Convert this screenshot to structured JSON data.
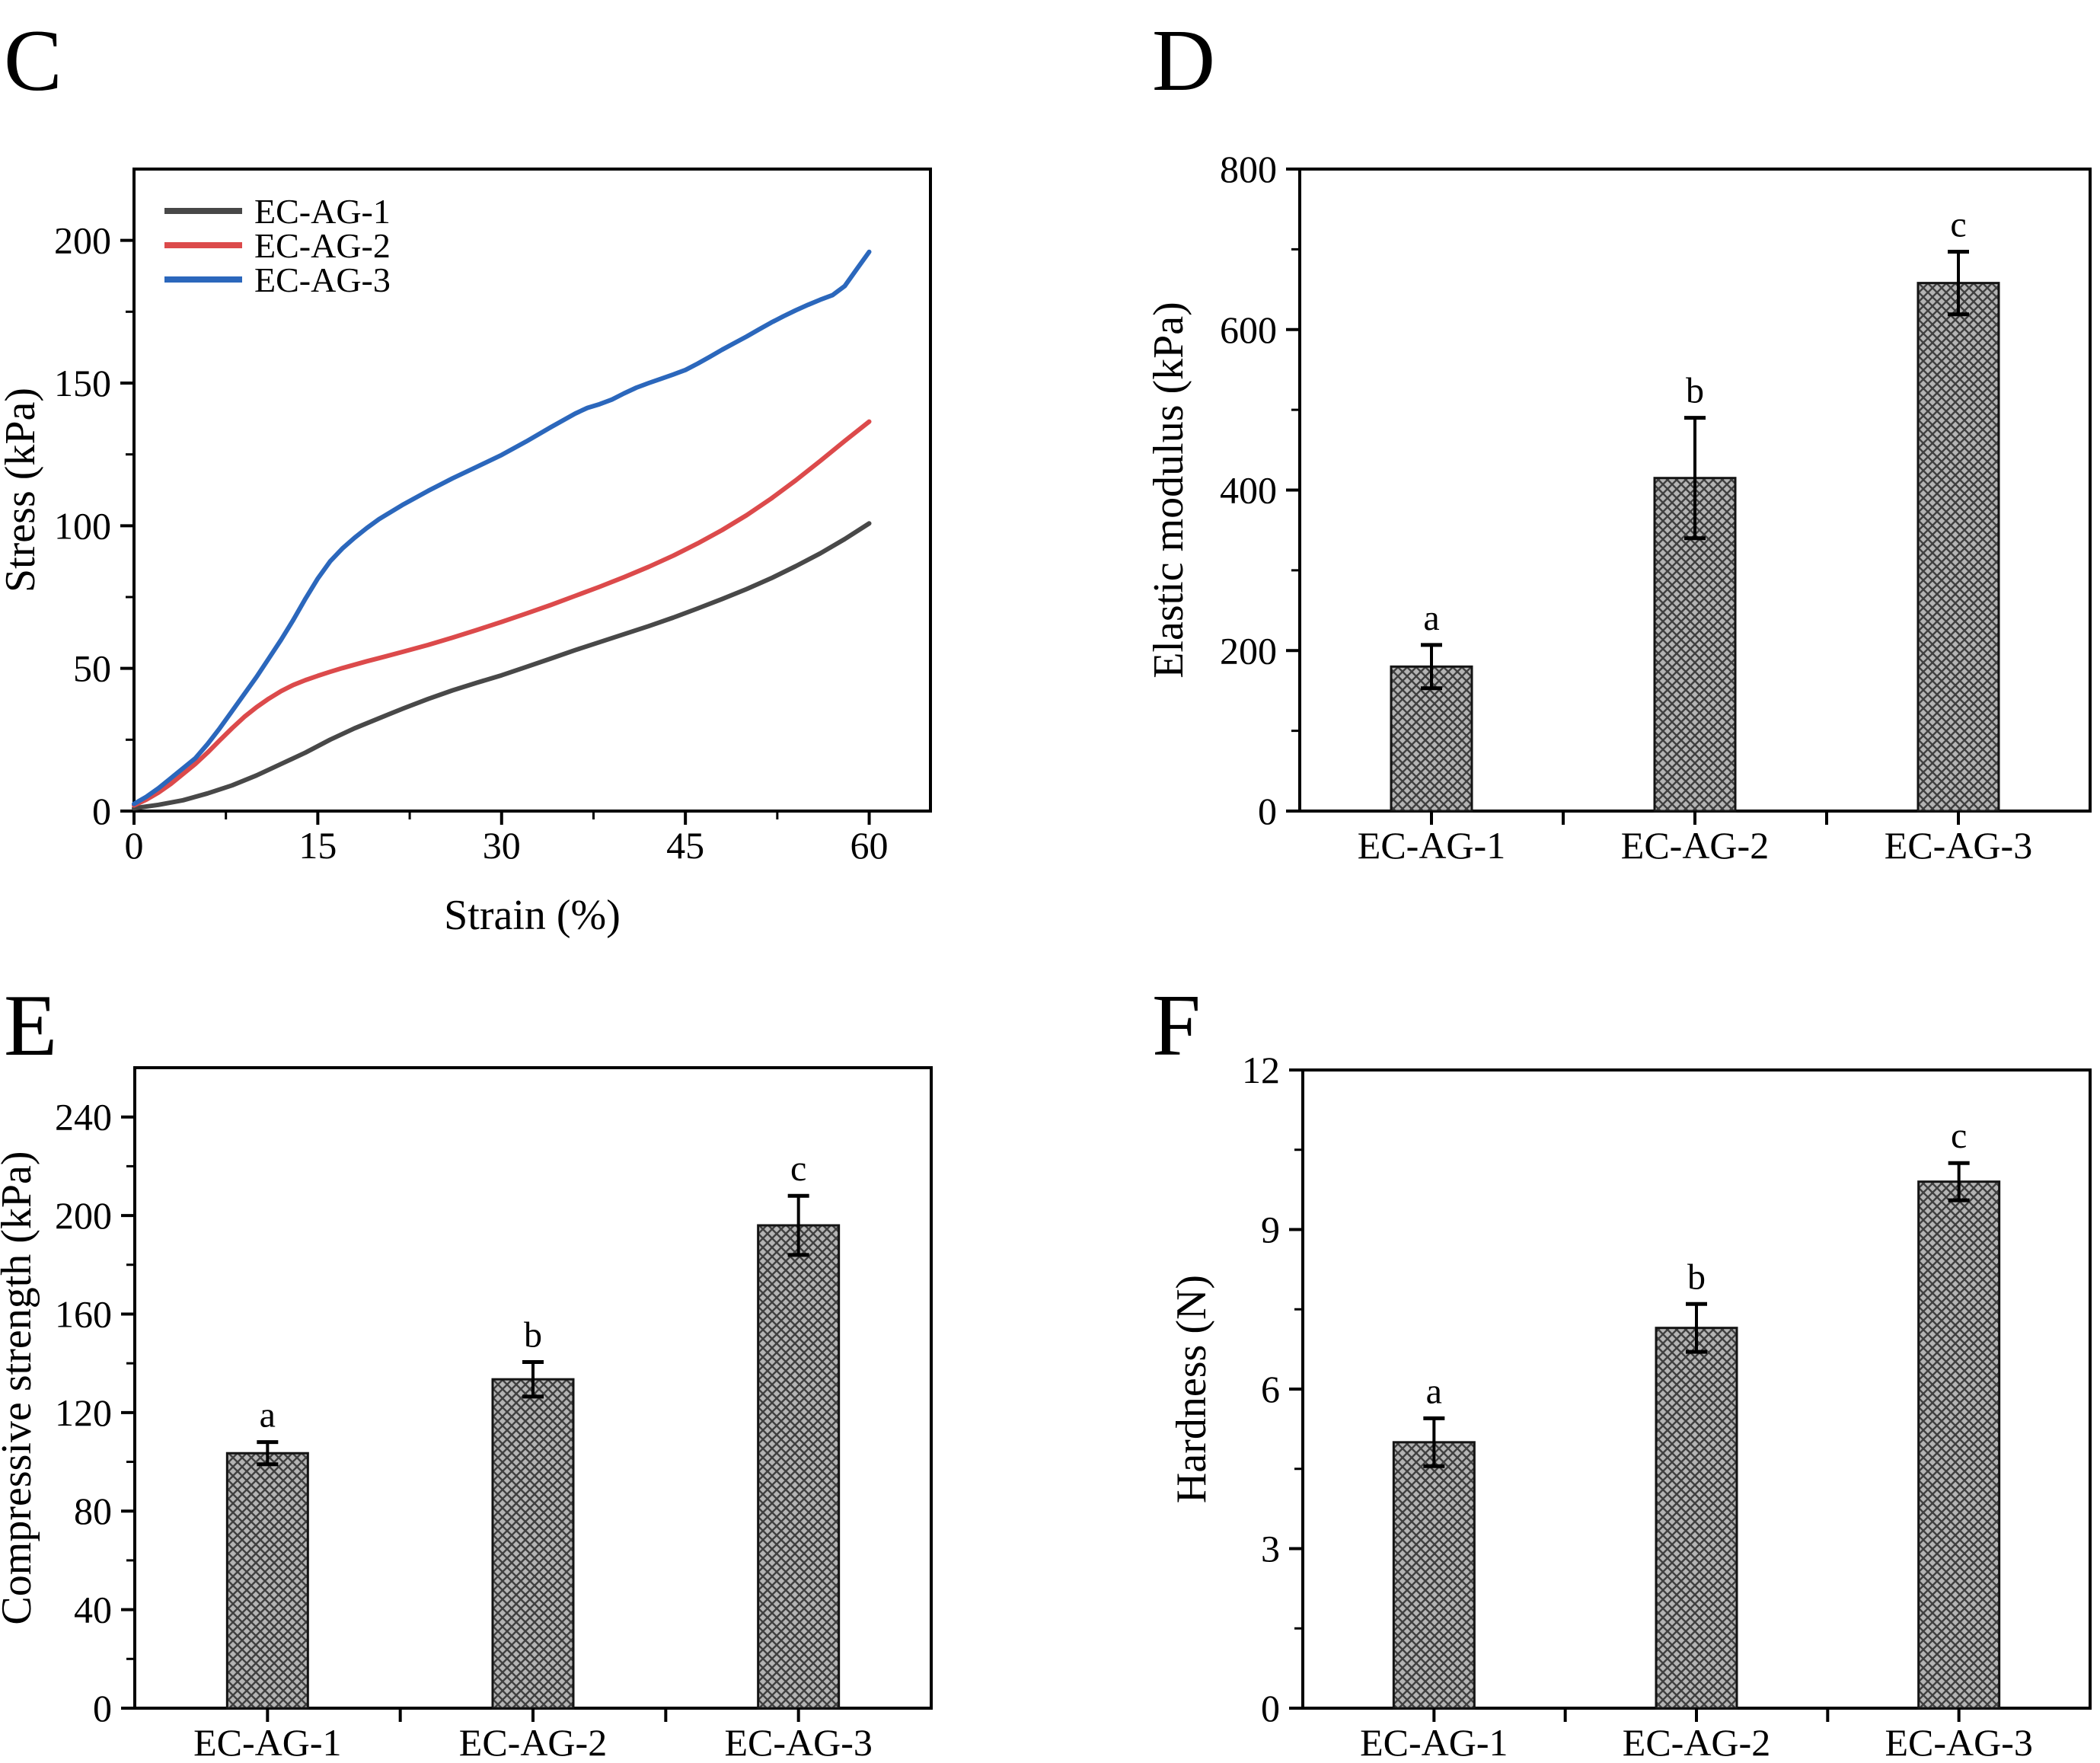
{
  "figure_title": "",
  "chart_data": [
    {
      "panel_letter": "C",
      "type": "line",
      "xlabel": "Strain (%)",
      "ylabel": "Stress (kPa)",
      "x_range": [
        0,
        65
      ],
      "y_range": [
        0,
        225
      ],
      "x_ticks": [
        0,
        15,
        30,
        45,
        60
      ],
      "x_minor_step": 7.5,
      "y_ticks": [
        0,
        50,
        100,
        150,
        200
      ],
      "y_minor_step": 25,
      "grid": "off",
      "legend_position": "top-left-inside",
      "series": [
        {
          "name": "EC-AG-1",
          "color": "#484848",
          "points": [
            [
              0,
              1
            ],
            [
              2,
              2.2
            ],
            [
              4,
              3.8
            ],
            [
              6,
              6.2
            ],
            [
              8,
              9
            ],
            [
              10,
              12.5
            ],
            [
              12,
              16.5
            ],
            [
              14,
              20.5
            ],
            [
              16,
              25
            ],
            [
              18,
              29
            ],
            [
              20,
              32.5
            ],
            [
              22,
              36
            ],
            [
              24,
              39.3
            ],
            [
              26,
              42.3
            ],
            [
              28,
              45
            ],
            [
              30,
              47.6
            ],
            [
              32,
              50.5
            ],
            [
              34,
              53.4
            ],
            [
              36,
              56.4
            ],
            [
              38,
              59.2
            ],
            [
              40,
              62
            ],
            [
              42,
              64.8
            ],
            [
              44,
              67.8
            ],
            [
              46,
              71
            ],
            [
              48,
              74.3
            ],
            [
              50,
              77.8
            ],
            [
              52,
              81.6
            ],
            [
              54,
              85.8
            ],
            [
              56,
              90.3
            ],
            [
              58,
              95.3
            ],
            [
              60,
              100.8
            ]
          ]
        },
        {
          "name": "EC-AG-2",
          "color": "#dc4a4b",
          "points": [
            [
              0,
              2
            ],
            [
              1,
              4
            ],
            [
              2,
              6.5
            ],
            [
              3,
              9.5
            ],
            [
              4,
              13
            ],
            [
              5,
              16.5
            ],
            [
              6,
              20.5
            ],
            [
              7,
              24.8
            ],
            [
              8,
              29
            ],
            [
              9,
              33
            ],
            [
              10,
              36.4
            ],
            [
              11,
              39.4
            ],
            [
              12,
              42
            ],
            [
              13,
              44.2
            ],
            [
              14,
              45.9
            ],
            [
              15,
              47.4
            ],
            [
              16,
              48.8
            ],
            [
              17,
              50.1
            ],
            [
              18,
              51.3
            ],
            [
              19,
              52.5
            ],
            [
              20,
              53.6
            ],
            [
              22,
              55.9
            ],
            [
              24,
              58.2
            ],
            [
              26,
              60.8
            ],
            [
              28,
              63.5
            ],
            [
              30,
              66.3
            ],
            [
              32,
              69.2
            ],
            [
              34,
              72.2
            ],
            [
              36,
              75.4
            ],
            [
              38,
              78.6
            ],
            [
              40,
              82
            ],
            [
              42,
              85.6
            ],
            [
              44,
              89.5
            ],
            [
              46,
              93.8
            ],
            [
              48,
              98.5
            ],
            [
              50,
              103.7
            ],
            [
              52,
              109.5
            ],
            [
              54,
              115.9
            ],
            [
              56,
              122.7
            ],
            [
              58,
              129.7
            ],
            [
              60,
              136.5
            ]
          ]
        },
        {
          "name": "EC-AG-3",
          "color": "#2b67bc",
          "points": [
            [
              0,
              2.5
            ],
            [
              1,
              5
            ],
            [
              2,
              8
            ],
            [
              3,
              11.5
            ],
            [
              4,
              15
            ],
            [
              5,
              18.5
            ],
            [
              6,
              23.5
            ],
            [
              7,
              29
            ],
            [
              8,
              35
            ],
            [
              9,
              41
            ],
            [
              10,
              47
            ],
            [
              11,
              53.5
            ],
            [
              12,
              60
            ],
            [
              13,
              67
            ],
            [
              14,
              74.5
            ],
            [
              15,
              81.5
            ],
            [
              16,
              87.5
            ],
            [
              17,
              92
            ],
            [
              18,
              95.8
            ],
            [
              19,
              99.2
            ],
            [
              20,
              102.3
            ],
            [
              22,
              107.5
            ],
            [
              24,
              112.2
            ],
            [
              26,
              116.6
            ],
            [
              28,
              120.7
            ],
            [
              30,
              124.8
            ],
            [
              32,
              129.5
            ],
            [
              34,
              134.5
            ],
            [
              36,
              139.3
            ],
            [
              37,
              141.3
            ],
            [
              38,
              142.6
            ],
            [
              39,
              144.2
            ],
            [
              40,
              146.4
            ],
            [
              41,
              148.4
            ],
            [
              42,
              150
            ],
            [
              43,
              151.5
            ],
            [
              44,
              153
            ],
            [
              45,
              154.6
            ],
            [
              46,
              156.8
            ],
            [
              47,
              159.2
            ],
            [
              48,
              161.7
            ],
            [
              49,
              164
            ],
            [
              50,
              166.3
            ],
            [
              51,
              168.8
            ],
            [
              52,
              171.2
            ],
            [
              53,
              173.4
            ],
            [
              54,
              175.5
            ],
            [
              55,
              177.4
            ],
            [
              56,
              179.2
            ],
            [
              57,
              180.8
            ],
            [
              58,
              184
            ],
            [
              59,
              190
            ],
            [
              60,
              196
            ]
          ]
        }
      ]
    },
    {
      "panel_letter": "D",
      "type": "bar",
      "xlabel": "",
      "ylabel": "Elastic modulus (kPa)",
      "categories": [
        "EC-AG-1",
        "EC-AG-2",
        "EC-AG-3"
      ],
      "values": [
        180,
        415,
        658
      ],
      "errors": [
        27,
        75,
        39
      ],
      "sig_labels": [
        "a",
        "b",
        "c"
      ],
      "y_range": [
        0,
        800
      ],
      "y_ticks": [
        0,
        200,
        400,
        600,
        800
      ],
      "y_minor_step": 100,
      "grid": "off",
      "bar_fill": "#b4b4b4",
      "bar_hatch_color": "#404040",
      "bar_stroke": "#141414"
    },
    {
      "panel_letter": "E",
      "type": "bar",
      "xlabel": "",
      "ylabel": "Compressive strength (kPa)",
      "categories": [
        "EC-AG-1",
        "EC-AG-2",
        "EC-AG-3"
      ],
      "values": [
        103.5,
        133.5,
        196
      ],
      "errors": [
        4.5,
        7,
        12
      ],
      "sig_labels": [
        "a",
        "b",
        "c"
      ],
      "y_range": [
        0,
        260
      ],
      "y_ticks": [
        0,
        40,
        80,
        120,
        160,
        200,
        240
      ],
      "y_minor_step": 20,
      "grid": "off",
      "bar_fill": "#b4b4b4",
      "bar_hatch_color": "#404040",
      "bar_stroke": "#141414"
    },
    {
      "panel_letter": "F",
      "type": "bar",
      "xlabel": "",
      "ylabel": "Hardness (N)",
      "categories": [
        "EC-AG-1",
        "EC-AG-2",
        "EC-AG-3"
      ],
      "values": [
        5.0,
        7.15,
        9.9
      ],
      "errors": [
        0.45,
        0.45,
        0.35
      ],
      "sig_labels": [
        "a",
        "b",
        "c"
      ],
      "y_range": [
        0,
        12
      ],
      "y_ticks": [
        0,
        3,
        6,
        9,
        12
      ],
      "y_minor_step": 1.5,
      "grid": "off",
      "bar_fill": "#b4b4b4",
      "bar_hatch_color": "#404040",
      "bar_stroke": "#141414"
    }
  ]
}
